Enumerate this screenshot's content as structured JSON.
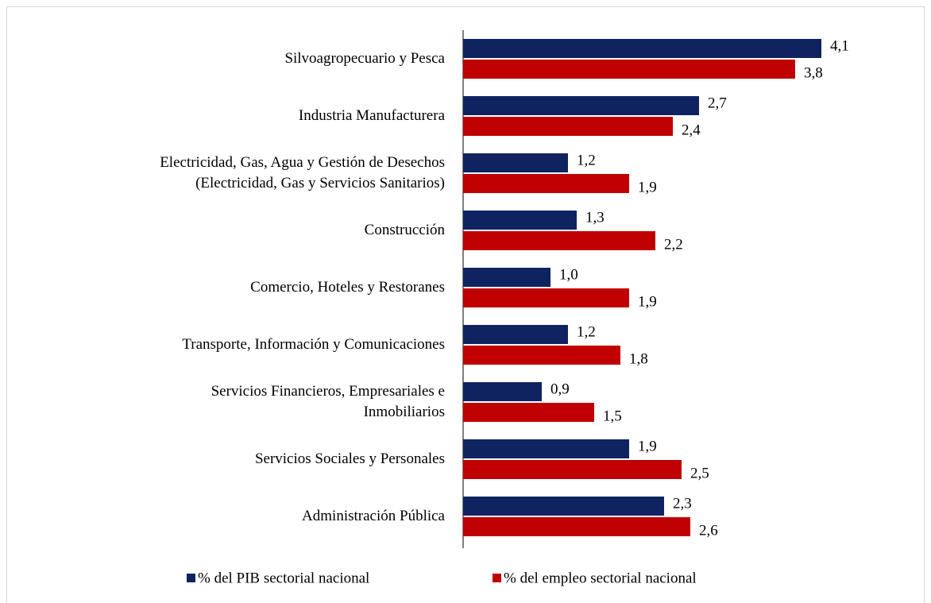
{
  "chart_data": {
    "type": "hbar",
    "categories": [
      "Silvoagropecuario y Pesca",
      "Industria Manufacturera",
      "Electricidad, Gas, Agua y Gestión de Desechos\n(Electricidad, Gas y Servicios Sanitarios)",
      "Construcción",
      "Comercio, Hoteles y Restoranes",
      "Transporte, Información y Comunicaciones",
      "Servicios Financieros, Empresariales e\nInmobiliarios",
      "Servicios Sociales y Personales",
      "Administración Pública"
    ],
    "series": [
      {
        "name": "% del PIB sectorial nacional",
        "color": "#0f2360",
        "values": [
          4.1,
          2.7,
          1.2,
          1.3,
          1.0,
          1.2,
          0.9,
          1.9,
          2.3
        ],
        "value_labels": [
          "4,1",
          "2,7",
          "1,2",
          "1,3",
          "1,0",
          "1,2",
          "0,9",
          "1,9",
          "2,3"
        ]
      },
      {
        "name": "% del empleo sectorial nacional",
        "color": "#c00000",
        "values": [
          3.8,
          2.4,
          1.9,
          2.2,
          1.9,
          1.8,
          1.5,
          2.5,
          2.6
        ],
        "value_labels": [
          "3,8",
          "2,4",
          "1,9",
          "2,2",
          "1,9",
          "1,8",
          "1,5",
          "2,5",
          "2,6"
        ]
      }
    ],
    "legend": "bottom"
  }
}
